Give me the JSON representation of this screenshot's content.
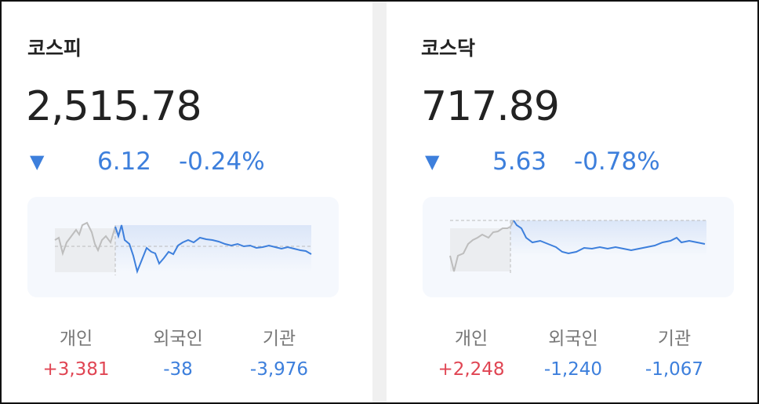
{
  "cards": [
    {
      "name": "코스피",
      "value": "2,515.78",
      "arrow": "▼",
      "change": "6.12",
      "percent": "-0.24%",
      "investors": [
        {
          "label": "개인",
          "value": "+3,381"
        },
        {
          "label": "외국인",
          "value": "-38"
        },
        {
          "label": "기관",
          "value": "-3,976"
        }
      ]
    },
    {
      "name": "코스닥",
      "value": "717.89",
      "arrow": "▼",
      "change": "5.63",
      "percent": "-0.78%",
      "investors": [
        {
          "label": "개인",
          "value": "+2,248"
        },
        {
          "label": "외국인",
          "value": "-1,240"
        },
        {
          "label": "기관",
          "value": "-1,067"
        }
      ]
    }
  ]
}
